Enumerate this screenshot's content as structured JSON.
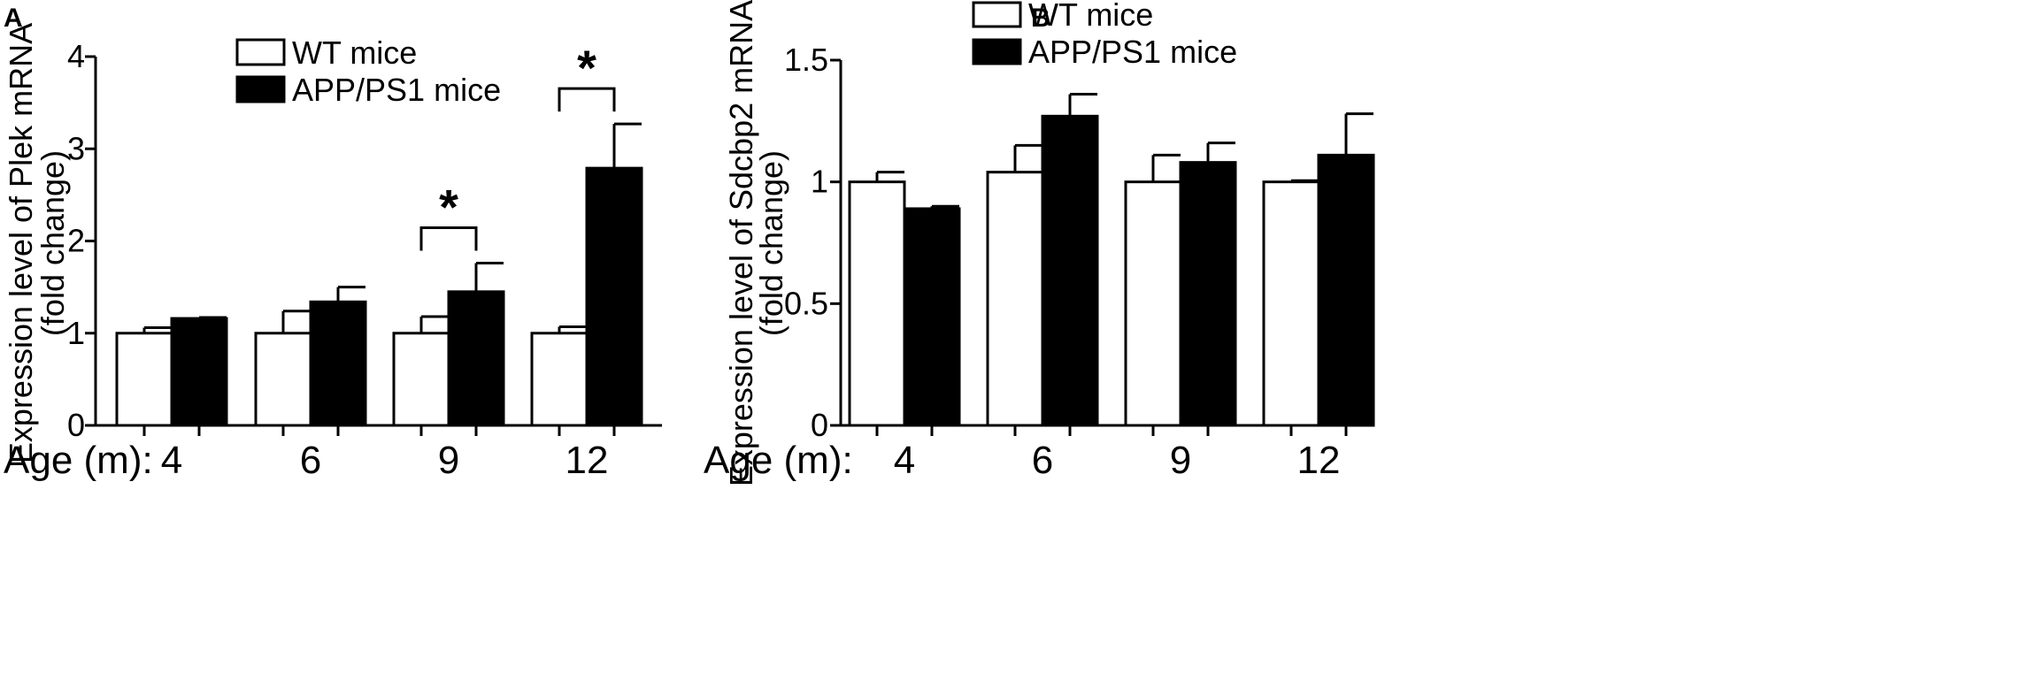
{
  "figure": {
    "colors": {
      "wt_fill": "#ffffff",
      "app_fill": "#000000",
      "stroke": "#000000"
    }
  },
  "chart_data": [
    {
      "panel": "A",
      "type": "bar",
      "title": "",
      "ylabel_line1": "Expression level of Plek mRNA",
      "ylabel_line2": "(fold change)",
      "xlabel": "Age (m):",
      "categories": [
        "4",
        "6",
        "9",
        "12"
      ],
      "ylim": [
        0,
        4
      ],
      "yticks": [
        0,
        1,
        2,
        3,
        4
      ],
      "ytick_labels": [
        "0",
        "1",
        "2",
        "3",
        "4"
      ],
      "legend": [
        "WT mice",
        "APP/PS1 mice"
      ],
      "legend_position": "top-center",
      "series": [
        {
          "name": "WT mice",
          "color": "#ffffff",
          "values": [
            1.0,
            1.0,
            1.0,
            1.0
          ],
          "errors": [
            0.06,
            0.24,
            0.18,
            0.07
          ]
        },
        {
          "name": "APP/PS1 mice",
          "color": "#000000",
          "values": [
            1.16,
            1.34,
            1.45,
            2.79
          ],
          "errors": [
            0.01,
            0.16,
            0.31,
            0.48
          ]
        }
      ],
      "significance": [
        {
          "category_index": 2,
          "label": "*"
        },
        {
          "category_index": 3,
          "label": "*"
        }
      ]
    },
    {
      "panel": "B",
      "type": "bar",
      "title": "",
      "ylabel_line1": "Expression level of Sdcbp2 mRNA",
      "ylabel_line2": "(fold change)",
      "xlabel": "Age (m):",
      "categories": [
        "4",
        "6",
        "9",
        "12"
      ],
      "ylim": [
        0,
        1.5
      ],
      "yticks": [
        0,
        0.5,
        1,
        1.5
      ],
      "ytick_labels": [
        "0",
        "0.5",
        "1",
        "1.5"
      ],
      "legend": [
        "WT mice",
        "APP/PS1 mice"
      ],
      "legend_position": "top-center",
      "series": [
        {
          "name": "WT mice",
          "color": "#ffffff",
          "values": [
            1.0,
            1.04,
            1.0,
            1.0
          ],
          "errors": [
            0.04,
            0.11,
            0.11,
            0.005
          ]
        },
        {
          "name": "APP/PS1 mice",
          "color": "#000000",
          "values": [
            0.89,
            1.27,
            1.08,
            1.11
          ],
          "errors": [
            0.01,
            0.09,
            0.08,
            0.17
          ]
        }
      ],
      "significance": []
    }
  ]
}
